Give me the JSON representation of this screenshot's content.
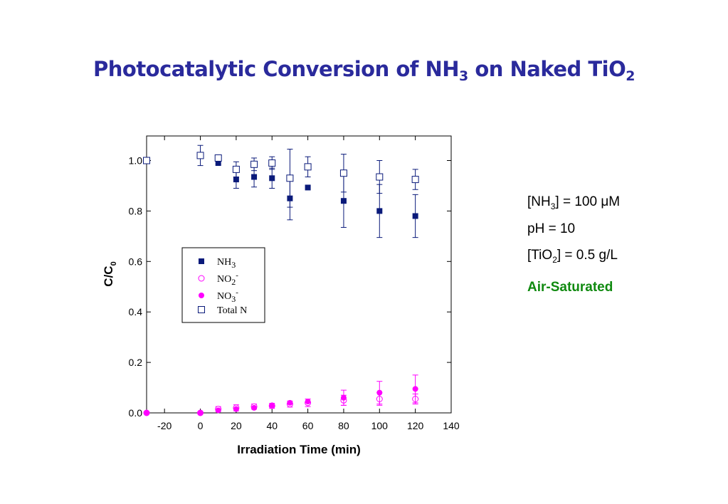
{
  "title": {
    "prefix": "Photocatalytic Conversion of NH",
    "sub1": "3",
    "middle": " on Naked TiO",
    "sub2": "2"
  },
  "conditions": {
    "nh3": {
      "a": "[NH",
      "sub": "3",
      "b": "] = 100 μM"
    },
    "ph": "pH = 10",
    "tio2": {
      "a": "[TiO",
      "sub": "2",
      "b": "] = 0.5 g/L"
    },
    "atmosphere": "Air-Saturated",
    "atmosphere_color": "#108a10"
  },
  "chart_data": {
    "type": "scatter",
    "xlabel": "Irradiation Time (min)",
    "ylabel": {
      "main": "C/C",
      "sub": "0"
    },
    "xlim": [
      -30,
      140
    ],
    "ylim": [
      0.0,
      1.1
    ],
    "xticks": [
      -20,
      0,
      20,
      40,
      60,
      80,
      100,
      120,
      140
    ],
    "yticks": [
      0.0,
      0.2,
      0.4,
      0.6,
      0.8,
      1.0
    ],
    "legend_position": "center-left",
    "series": [
      {
        "name": "NH",
        "sub": "3",
        "sup": "",
        "marker": "square-filled",
        "color": "#0a1a7a",
        "points": [
          {
            "x": 10,
            "y": 0.99
          },
          {
            "x": 20,
            "y": 0.925,
            "err": 0.035
          },
          {
            "x": 30,
            "y": 0.935,
            "err": 0.04
          },
          {
            "x": 40,
            "y": 0.93,
            "err": 0.04
          },
          {
            "x": 50,
            "y": 0.85,
            "err": 0.085
          },
          {
            "x": 60,
            "y": 0.893
          },
          {
            "x": 80,
            "y": 0.84,
            "err": 0.105
          },
          {
            "x": 100,
            "y": 0.8,
            "err": 0.105
          },
          {
            "x": 120,
            "y": 0.78,
            "err": 0.085
          }
        ]
      },
      {
        "name": "NO",
        "sub": "2",
        "sup": "-",
        "marker": "circle-open",
        "color": "#ff00ff",
        "points": [
          {
            "x": -30,
            "y": 0.0
          },
          {
            "x": 0,
            "y": 0.0
          },
          {
            "x": 10,
            "y": 0.015,
            "err": 0.01
          },
          {
            "x": 20,
            "y": 0.02,
            "err": 0.012
          },
          {
            "x": 30,
            "y": 0.025,
            "err": 0.01
          },
          {
            "x": 40,
            "y": 0.028,
            "err": 0.01
          },
          {
            "x": 50,
            "y": 0.035,
            "err": 0.012
          },
          {
            "x": 60,
            "y": 0.04,
            "err": 0.015
          },
          {
            "x": 80,
            "y": 0.05,
            "err": 0.02
          },
          {
            "x": 100,
            "y": 0.055,
            "err": 0.025
          },
          {
            "x": 120,
            "y": 0.055,
            "err": 0.02
          }
        ]
      },
      {
        "name": "NO",
        "sub": "3",
        "sup": "-",
        "marker": "circle-filled",
        "color": "#ff00ff",
        "points": [
          {
            "x": -30,
            "y": 0.0
          },
          {
            "x": 0,
            "y": 0.0
          },
          {
            "x": 10,
            "y": 0.01
          },
          {
            "x": 20,
            "y": 0.015
          },
          {
            "x": 30,
            "y": 0.02
          },
          {
            "x": 40,
            "y": 0.03
          },
          {
            "x": 50,
            "y": 0.04
          },
          {
            "x": 60,
            "y": 0.045
          },
          {
            "x": 80,
            "y": 0.06,
            "err": 0.03
          },
          {
            "x": 100,
            "y": 0.08,
            "err": 0.045
          },
          {
            "x": 120,
            "y": 0.095,
            "err": 0.055
          }
        ]
      },
      {
        "name": "Total N",
        "sub": "",
        "sup": "",
        "marker": "square-open",
        "color": "#0a1a7a",
        "points": [
          {
            "x": -30,
            "y": 1.0
          },
          {
            "x": 0,
            "y": 1.02,
            "err": 0.04
          },
          {
            "x": 10,
            "y": 1.01
          },
          {
            "x": 20,
            "y": 0.965,
            "err": 0.03
          },
          {
            "x": 30,
            "y": 0.985,
            "err": 0.025
          },
          {
            "x": 40,
            "y": 0.99,
            "err": 0.025
          },
          {
            "x": 50,
            "y": 0.93,
            "err": 0.115
          },
          {
            "x": 60,
            "y": 0.975,
            "err": 0.04
          },
          {
            "x": 80,
            "y": 0.95,
            "err": 0.075
          },
          {
            "x": 100,
            "y": 0.935,
            "err": 0.065
          },
          {
            "x": 120,
            "y": 0.925,
            "err": 0.04
          }
        ]
      }
    ]
  }
}
